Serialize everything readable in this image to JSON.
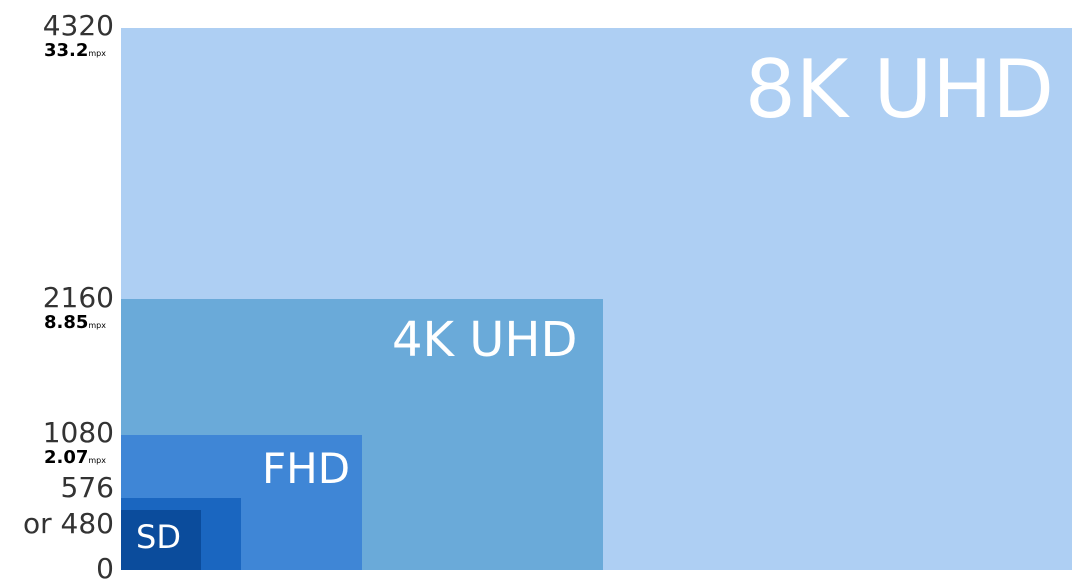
{
  "chart_data": {
    "type": "area",
    "title": "",
    "xlabel": "",
    "ylabel": "",
    "grid": false,
    "ylim": [
      0,
      4320
    ],
    "colors": {
      "8k": "#aecff3",
      "4k": "#6aaad9",
      "fhd": "#3f86d6",
      "sd576": "#1a66c0",
      "sd480": "#0b4c9c",
      "label": "#ffffff",
      "tick": "#333333",
      "mpx": "#000000"
    },
    "formats": [
      {
        "id": "8k",
        "label": "8K UHD",
        "height": 4320,
        "megapixels": 33.2
      },
      {
        "id": "4k",
        "label": "4K UHD",
        "height": 2160,
        "megapixels": 8.85
      },
      {
        "id": "fhd",
        "label": "FHD",
        "height": 1080,
        "megapixels": 2.07
      },
      {
        "id": "sd576",
        "label": "",
        "height": 576
      },
      {
        "id": "sd480",
        "label": "SD",
        "height": 480
      }
    ],
    "y_ticks": [
      {
        "id": "t4320",
        "text": "4320",
        "value": 4320
      },
      {
        "id": "t2160",
        "text": "2160",
        "value": 2160
      },
      {
        "id": "t1080",
        "text": "1080",
        "value": 1080
      },
      {
        "id": "t576",
        "text": "576",
        "value": 576
      },
      {
        "id": "t480",
        "text": "or 480",
        "value": 480
      },
      {
        "id": "t0",
        "text": "0",
        "value": 0
      }
    ],
    "megapixel_labels": [
      {
        "id": "m4320",
        "value_text": "33.2",
        "unit": "mpx",
        "at": 4320
      },
      {
        "id": "m2160",
        "value_text": "8.85",
        "unit": "mpx",
        "at": 2160
      },
      {
        "id": "m1080",
        "value_text": "2.07",
        "unit": "mpx",
        "at": 1080
      }
    ]
  }
}
